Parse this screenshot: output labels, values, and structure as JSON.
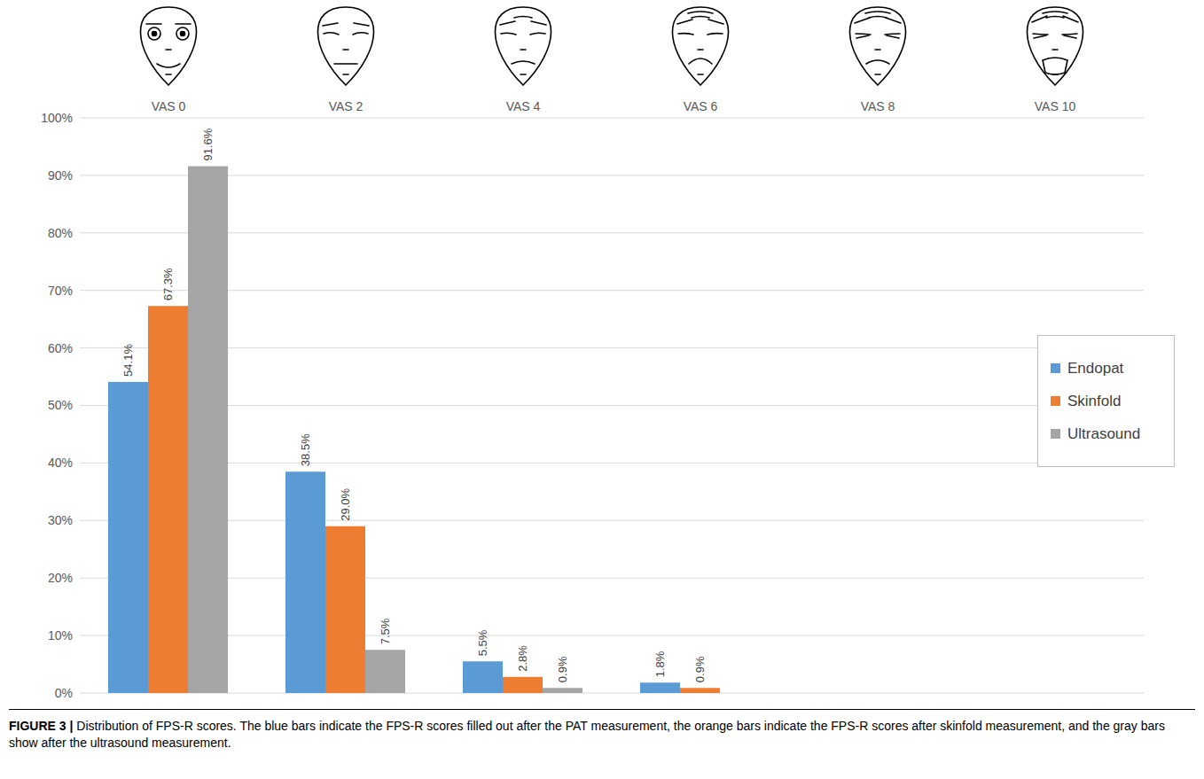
{
  "chart_data": {
    "type": "bar",
    "caption_label": "FIGURE 3 |",
    "caption": "Distribution of FPS-R scores. The blue bars indicate the FPS-R scores filled out after the PAT measurement, the orange bars indicate the FPS-R scores after skinfold measurement, and the gray bars show after the ultrasound measurement.",
    "categories": [
      "VAS 0",
      "VAS 2",
      "VAS 4",
      "VAS 6",
      "VAS 8",
      "VAS 10"
    ],
    "series": [
      {
        "name": "Endopat",
        "color": "#5b9bd5",
        "values": [
          54.1,
          38.5,
          5.5,
          1.8,
          null,
          null
        ],
        "value_labels": [
          "54.1%",
          "38.5%",
          "5.5%",
          "1.8%",
          null,
          null
        ]
      },
      {
        "name": "Skinfold",
        "color": "#ed7d31",
        "values": [
          67.3,
          29.0,
          2.8,
          0.9,
          null,
          null
        ],
        "value_labels": [
          "67.3%",
          "29.0%",
          "2.8%",
          "0.9%",
          null,
          null
        ]
      },
      {
        "name": "Ultrasound",
        "color": "#a5a5a5",
        "values": [
          91.6,
          7.5,
          0.9,
          null,
          null,
          null
        ],
        "value_labels": [
          "91.6%",
          "7.5%",
          "0.9%",
          null,
          null,
          null
        ]
      }
    ],
    "ylim": [
      0,
      100
    ],
    "yticks": [
      {
        "value": 0,
        "label": "0%"
      },
      {
        "value": 10,
        "label": "10%"
      },
      {
        "value": 20,
        "label": "20%"
      },
      {
        "value": 30,
        "label": "30%"
      },
      {
        "value": 40,
        "label": "40%"
      },
      {
        "value": 50,
        "label": "50%"
      },
      {
        "value": 60,
        "label": "60%"
      },
      {
        "value": 70,
        "label": "70%"
      },
      {
        "value": 80,
        "label": "80%"
      },
      {
        "value": 90,
        "label": "90%"
      },
      {
        "value": 100,
        "label": "100%"
      }
    ],
    "grid": true,
    "data_labels": true,
    "legend": "right"
  }
}
